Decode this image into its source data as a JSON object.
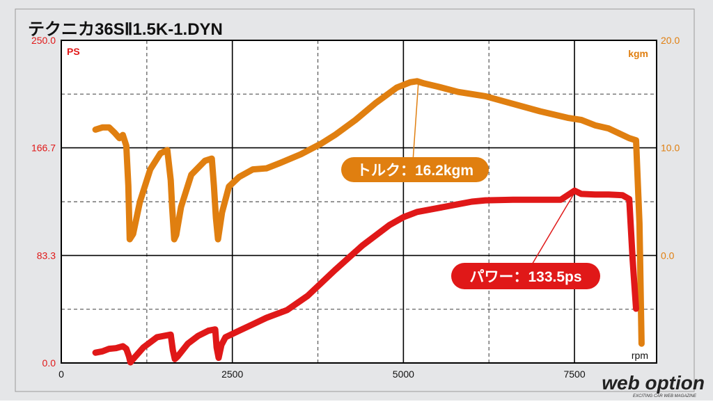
{
  "colors": {
    "frame_bg": "#e5e6e8",
    "plot_bg": "#ffffff",
    "power": "#e01818",
    "torque": "#e07f10",
    "grid_major": "#000000",
    "grid_minor": "#555555",
    "logo": "#222222"
  },
  "chart_data": {
    "type": "line",
    "title": "テクニカ36SⅡ1.5K-1.DYN",
    "xlabel": "rpm",
    "y_left_label": "PS",
    "y_right_label": "kgm",
    "xlim": [
      0,
      8700
    ],
    "ylim_left": [
      0,
      250
    ],
    "ylim_right": [
      -10,
      20
    ],
    "x_ticks": [
      {
        "value": 0,
        "label": "0"
      },
      {
        "value": 2500,
        "label": "2500"
      },
      {
        "value": 5000,
        "label": "5000"
      },
      {
        "value": 7500,
        "label": "7500"
      }
    ],
    "y_left_ticks": [
      {
        "value": 0,
        "label": "0.0"
      },
      {
        "value": 83.3,
        "label": "83.3"
      },
      {
        "value": 166.7,
        "label": "166.7"
      },
      {
        "value": 250,
        "label": "250.0"
      }
    ],
    "y_right_ticks": [
      {
        "value": 0,
        "label": "0.0"
      },
      {
        "value": 10,
        "label": "10.0"
      },
      {
        "value": 20,
        "label": "20.0"
      }
    ],
    "series": [
      {
        "name": "トルク",
        "axis": "right",
        "color": "#e07f10",
        "x": [
          500,
          600,
          700,
          780,
          850,
          900,
          950,
          980,
          1000,
          1050,
          1150,
          1300,
          1450,
          1550,
          1600,
          1620,
          1650,
          1680,
          1750,
          1900,
          2100,
          2200,
          2230,
          2260,
          2290,
          2350,
          2450,
          2600,
          2800,
          3000,
          3200,
          3500,
          3800,
          4000,
          4300,
          4600,
          4900,
          5100,
          5200,
          5300,
          5500,
          5800,
          6200,
          6600,
          7000,
          7400,
          7600,
          7800,
          8000,
          8200,
          8300,
          8400,
          8450,
          8480
        ],
        "values": [
          11.7,
          11.9,
          11.9,
          11.4,
          10.9,
          11.2,
          10.2,
          6.5,
          1.5,
          2.0,
          5.0,
          8.0,
          9.5,
          9.8,
          7.0,
          4.5,
          1.5,
          1.9,
          4.5,
          7.5,
          8.8,
          9.0,
          6.5,
          3.5,
          1.5,
          4.0,
          6.4,
          7.3,
          8.0,
          8.1,
          8.6,
          9.4,
          10.4,
          11.2,
          12.6,
          14.2,
          15.6,
          16.1,
          16.2,
          16.0,
          15.7,
          15.2,
          14.8,
          14.1,
          13.4,
          12.8,
          12.6,
          12.1,
          11.8,
          11.2,
          10.9,
          10.7,
          3.0,
          -8.2
        ]
      },
      {
        "name": "パワー",
        "axis": "left",
        "color": "#e01818",
        "x": [
          500,
          600,
          700,
          800,
          900,
          950,
          990,
          1010,
          1050,
          1200,
          1400,
          1600,
          1630,
          1660,
          1700,
          1850,
          2000,
          2150,
          2250,
          2270,
          2300,
          2340,
          2400,
          2600,
          2800,
          3000,
          3300,
          3600,
          4000,
          4400,
          4800,
          5000,
          5200,
          5500,
          5800,
          6000,
          6200,
          6600,
          7000,
          7300,
          7500,
          7600,
          7800,
          8000,
          8200,
          8300,
          8350,
          8400
        ],
        "values": [
          8,
          9,
          11,
          11.5,
          13,
          11,
          5,
          0.5,
          3,
          12,
          20,
          22,
          10,
          3,
          5,
          15,
          21,
          25,
          26,
          12,
          4,
          14,
          20,
          25,
          30,
          35,
          41,
          52,
          72,
          91,
          107,
          113,
          117,
          120,
          123,
          125,
          126,
          126.5,
          126.5,
          126.5,
          133.5,
          131,
          130.5,
          130.5,
          130,
          127,
          80,
          42
        ]
      }
    ],
    "annotations": [
      {
        "text": "トルク：16.2kgm",
        "series": "トルク"
      },
      {
        "text": "パワー：133.5ps",
        "series": "パワー"
      }
    ]
  },
  "logo": {
    "text": "web option",
    "tagline": "EXCITING CAR WEB MAGAZINE"
  }
}
